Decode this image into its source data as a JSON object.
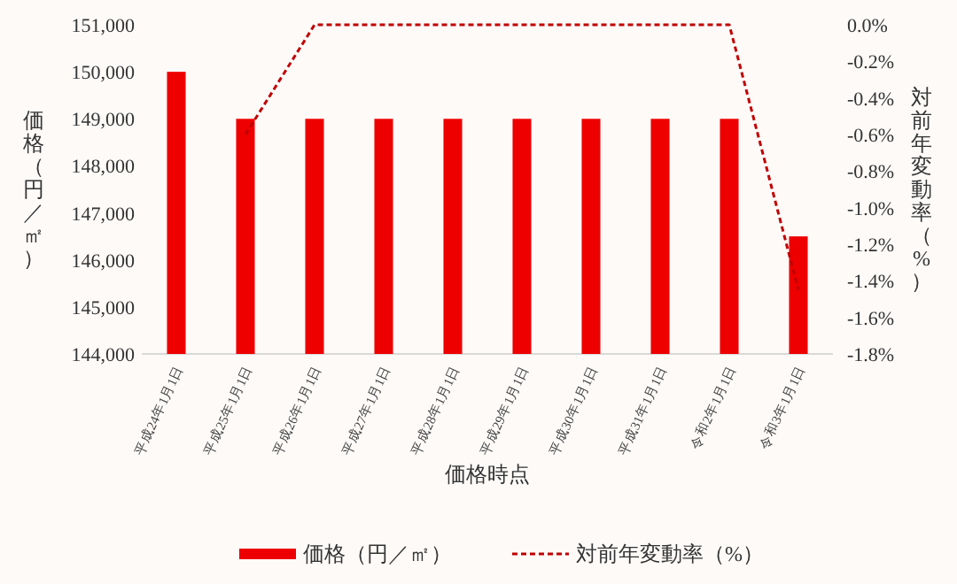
{
  "chart_data": {
    "type": "bar",
    "categories": [
      "平成24年1月1日",
      "平成25年1月1日",
      "平成26年1月1日",
      "平成27年1月1日",
      "平成28年1月1日",
      "平成29年1月1日",
      "平成30年1月1日",
      "平成31年1月1日",
      "令和2年1月1日",
      "令和3年1月1日"
    ],
    "series": [
      {
        "name": "価格（円／㎡）",
        "color": "#ee0000",
        "values": [
          150000,
          149000,
          149000,
          149000,
          149000,
          149000,
          149000,
          149000,
          149000,
          146500
        ]
      },
      {
        "name": "対前年変動率（%）",
        "type": "line",
        "axis": "y2",
        "color": "#c00000",
        "line_style": "dashed",
        "values": [
          null,
          -0.6,
          0.0,
          0.0,
          0.0,
          0.0,
          0.0,
          0.0,
          0.0,
          -1.45
        ]
      }
    ],
    "xlabel": "価格時点",
    "ylabel": "価格（円／㎡）",
    "y2label": "対前年変動率（%）",
    "ylim": [
      144000,
      151000
    ],
    "yticks": [
      {
        "value": 144000,
        "label": "144,000"
      },
      {
        "value": 145000,
        "label": "145,000"
      },
      {
        "value": 146000,
        "label": "146,000"
      },
      {
        "value": 147000,
        "label": "147,000"
      },
      {
        "value": 148000,
        "label": "148,000"
      },
      {
        "value": 149000,
        "label": "149,000"
      },
      {
        "value": 150000,
        "label": "150,000"
      },
      {
        "value": 151000,
        "label": "151,000"
      }
    ],
    "y2lim": [
      -1.8,
      0.0
    ],
    "y2ticks": [
      {
        "value": 0.0,
        "label": "0.0%"
      },
      {
        "value": -0.2,
        "label": "-0.2%"
      },
      {
        "value": -0.4,
        "label": "-0.4%"
      },
      {
        "value": -0.6,
        "label": "-0.6%"
      },
      {
        "value": -0.8,
        "label": "-0.8%"
      },
      {
        "value": -1.0,
        "label": "-1.0%"
      },
      {
        "value": -1.2,
        "label": "-1.2%"
      },
      {
        "value": -1.4,
        "label": "-1.4%"
      },
      {
        "value": -1.6,
        "label": "-1.6%"
      },
      {
        "value": -1.8,
        "label": "-1.8%"
      }
    ],
    "grid": false,
    "legend": "bottom"
  }
}
